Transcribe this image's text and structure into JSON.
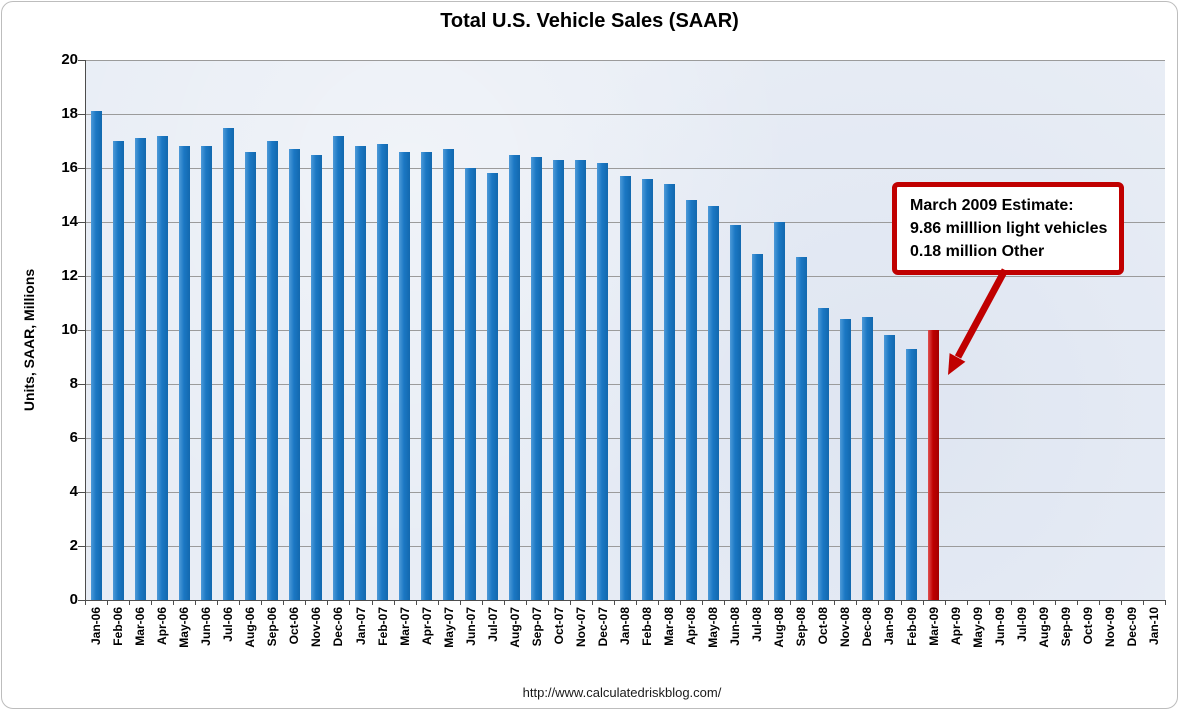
{
  "chart_data": {
    "type": "bar",
    "title": "Total U.S. Vehicle Sales (SAAR)",
    "xlabel": "",
    "ylabel": "Units, SAAR, Millions",
    "ylim": [
      0,
      20
    ],
    "ytick_step": 2,
    "grid": "horizontal gridlines on",
    "legend": "none",
    "plot_bg_color": "#E8EDF5",
    "gridline_color": "#9B9B9B",
    "axis_color": "#4D4D4D",
    "bar_color": "#1B78C4",
    "highlight_color": "#C00000",
    "highlight_category": "Mar-09",
    "categories": [
      "Jan-06",
      "Feb-06",
      "Mar-06",
      "Apr-06",
      "May-06",
      "Jun-06",
      "Jul-06",
      "Aug-06",
      "Sep-06",
      "Oct-06",
      "Nov-06",
      "Dec-06",
      "Jan-07",
      "Feb-07",
      "Mar-07",
      "Apr-07",
      "May-07",
      "Jun-07",
      "Jul-07",
      "Aug-07",
      "Sep-07",
      "Oct-07",
      "Nov-07",
      "Dec-07",
      "Jan-08",
      "Feb-08",
      "Mar-08",
      "Apr-08",
      "May-08",
      "Jun-08",
      "Jul-08",
      "Aug-08",
      "Sep-08",
      "Oct-08",
      "Nov-08",
      "Dec-08",
      "Jan-09",
      "Feb-09",
      "Mar-09",
      "Apr-09",
      "May-09",
      "Jun-09",
      "Jul-09",
      "Aug-09",
      "Sep-09",
      "Oct-09",
      "Nov-09",
      "Dec-09",
      "Jan-10"
    ],
    "values": [
      18.1,
      17.0,
      17.1,
      17.2,
      16.8,
      16.8,
      17.5,
      16.6,
      17.0,
      16.7,
      16.5,
      17.2,
      16.8,
      16.9,
      16.6,
      16.6,
      16.7,
      16.0,
      15.8,
      16.5,
      16.4,
      16.3,
      16.3,
      16.2,
      15.7,
      15.6,
      15.4,
      14.8,
      14.6,
      13.9,
      12.8,
      14.0,
      12.7,
      10.8,
      10.4,
      10.5,
      9.8,
      9.3,
      10.0,
      null,
      null,
      null,
      null,
      null,
      null,
      null,
      null,
      null,
      null
    ]
  },
  "annotation": {
    "line1": "March 2009 Estimate:",
    "line2": "9.86 milllion light vehicles",
    "line3": "0.18 million Other",
    "box_border_color": "#C00000",
    "arrow_color": "#C00000"
  },
  "footer": {
    "url": "http://www.calculatedriskblog.com/"
  }
}
